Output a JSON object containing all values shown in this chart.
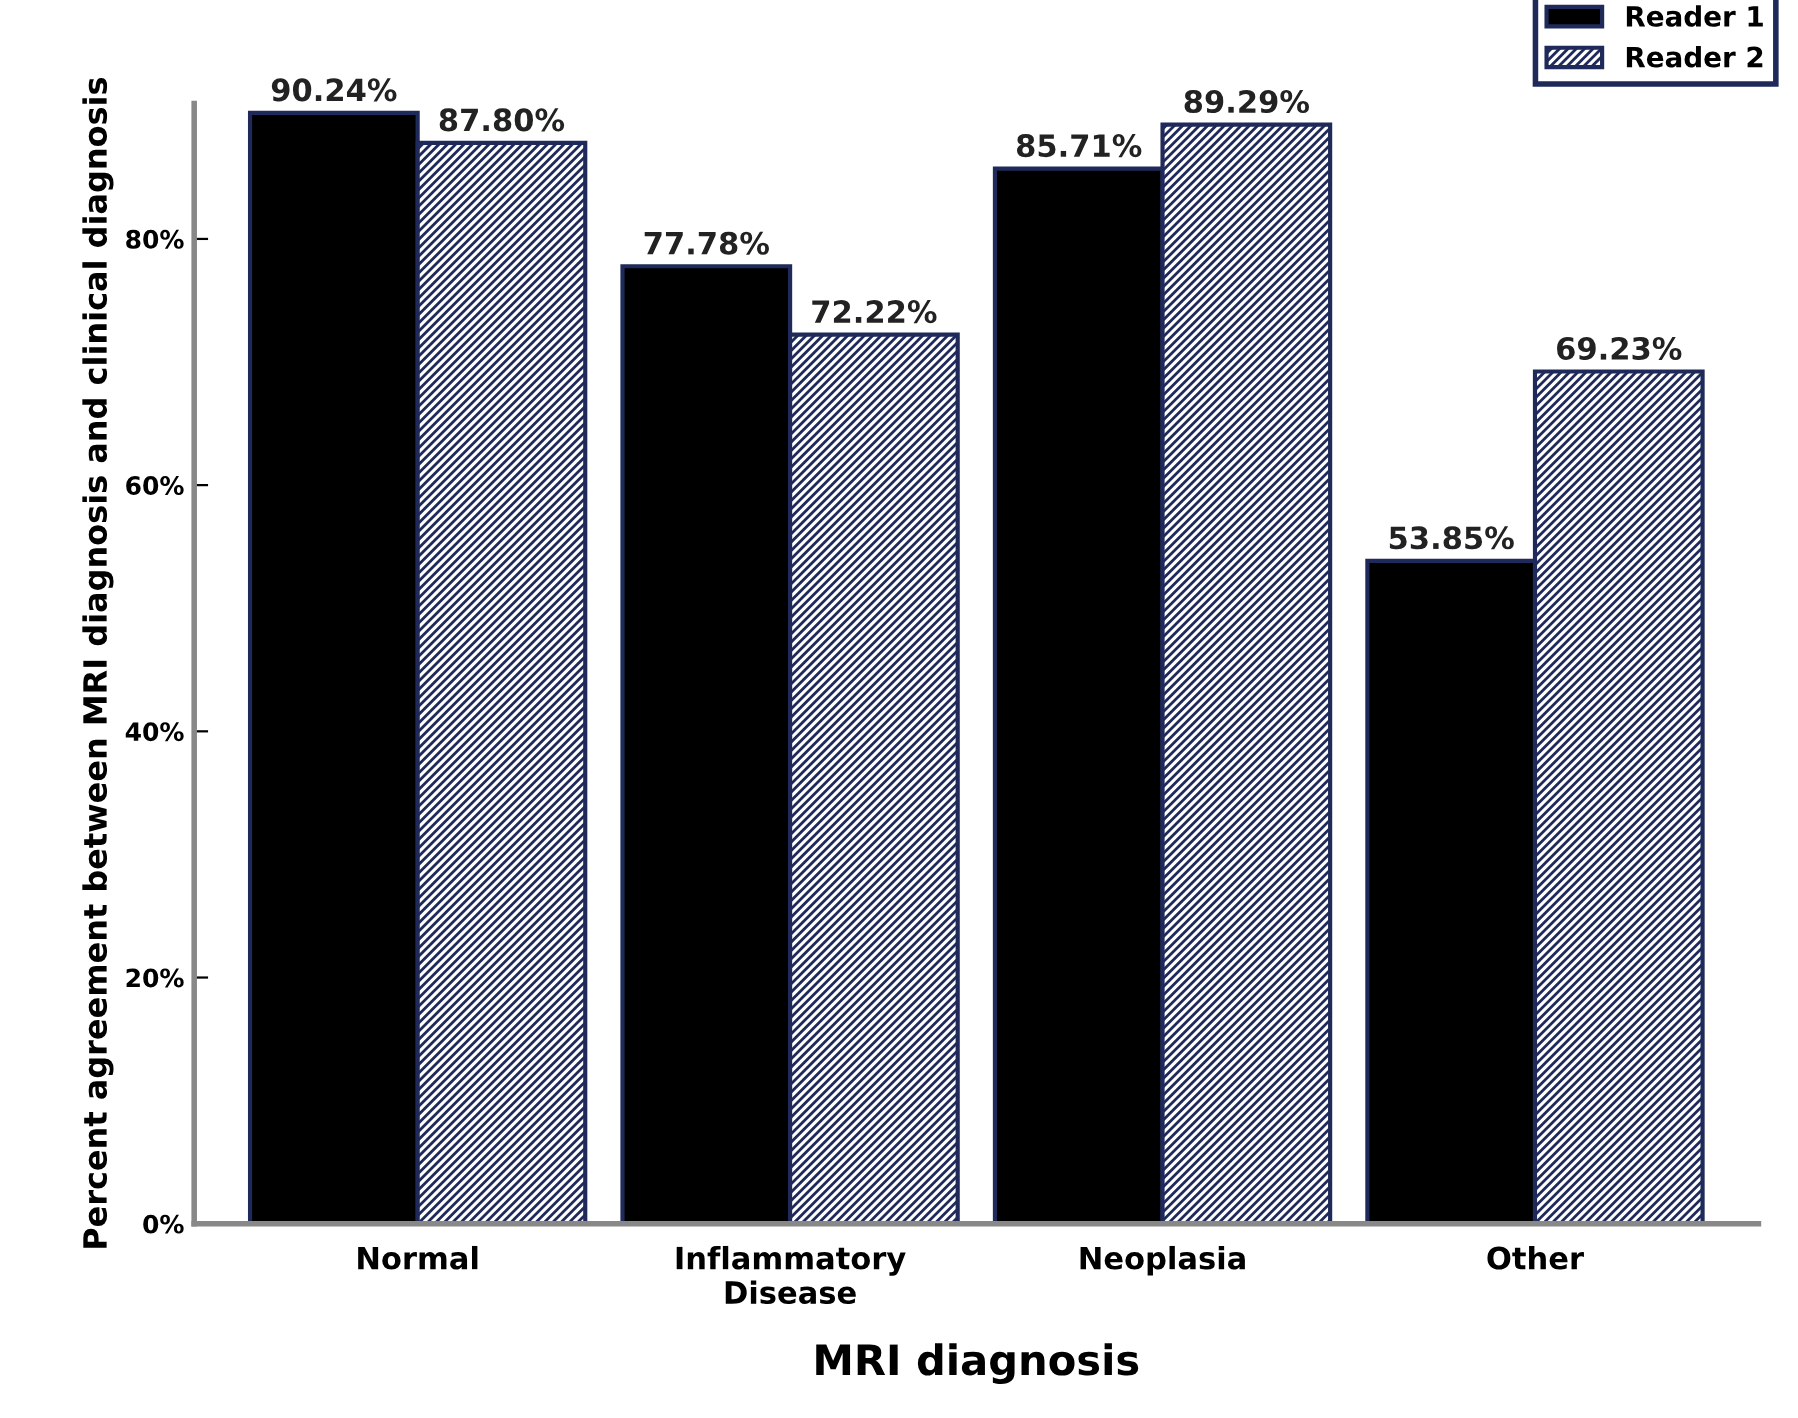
{
  "chart_data": {
    "type": "bar",
    "xlabel": "MRI diagnosis",
    "ylabel": "Percent agreement between MRI diagnosis and clinical diagnosis",
    "categories": [
      "Normal",
      "Inflammatory\nDisease",
      "Neoplasia",
      "Other"
    ],
    "series": [
      {
        "name": "Reader 1",
        "color": "#000000",
        "values": [
          90.24,
          77.78,
          85.71,
          53.85
        ],
        "value_labels": [
          "90.24%",
          "77.78%",
          "85.71%",
          "53.85%"
        ]
      },
      {
        "name": "Reader 2",
        "color": "#1f2a5a",
        "values": [
          87.8,
          72.22,
          89.29,
          69.23
        ],
        "value_labels": [
          "87.80%",
          "72.22%",
          "89.29%",
          "69.23%"
        ]
      }
    ],
    "ylim": [
      0,
      91
    ],
    "yticks": [
      {
        "value": 0,
        "label": "0%"
      },
      {
        "value": 20,
        "label": "20%"
      },
      {
        "value": 40,
        "label": "40%"
      },
      {
        "value": 60,
        "label": "60%"
      },
      {
        "value": 80,
        "label": "80%"
      }
    ],
    "legend": "top right",
    "grid": false
  }
}
